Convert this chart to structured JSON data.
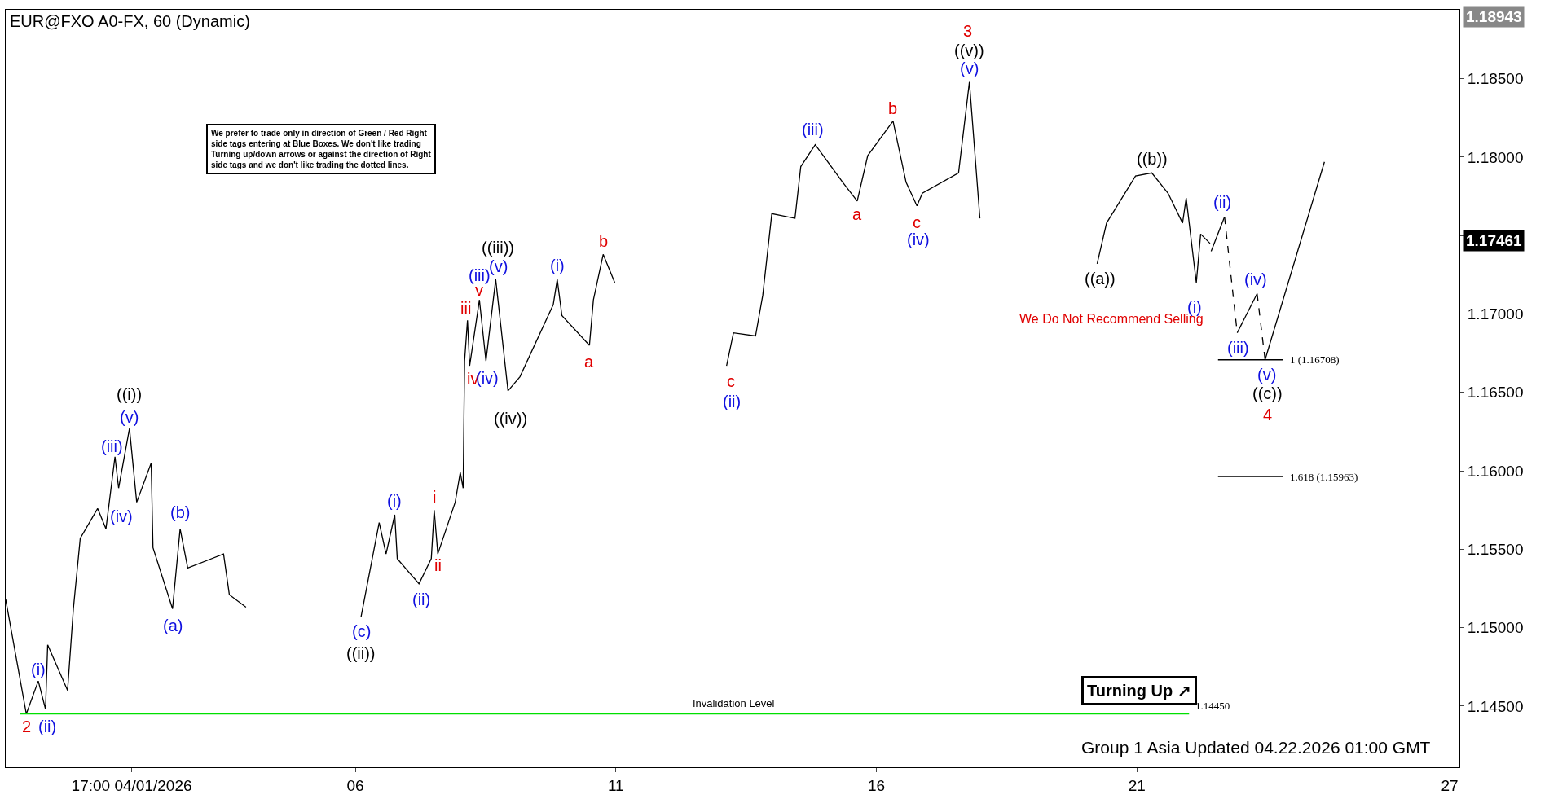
{
  "chart_data": {
    "type": "line",
    "title": "EUR@FXO A0-FX, 60 (Dynamic)",
    "xlim": [
      "2026-03-30T07:00",
      "2026-04-27T04:30"
    ],
    "ylim": [
      1.1411,
      1.1894
    ],
    "xticks": [
      {
        "value": "2026-04-01T17:00",
        "label": "17:00 04/01/2026"
      },
      {
        "value": "2026-04-06",
        "label": "06"
      },
      {
        "value": "2026-04-11",
        "label": "11"
      },
      {
        "value": "2026-04-16",
        "label": "16"
      },
      {
        "value": "2026-04-21",
        "label": "21"
      },
      {
        "value": "2026-04-27",
        "label": "27"
      }
    ],
    "yticks": [
      {
        "value": 1.145,
        "label": "1.14500"
      },
      {
        "value": 1.15,
        "label": "1.15000"
      },
      {
        "value": 1.155,
        "label": "1.15500"
      },
      {
        "value": 1.16,
        "label": "1.16000"
      },
      {
        "value": 1.165,
        "label": "1.16500"
      },
      {
        "value": 1.17,
        "label": "1.17000"
      },
      {
        "value": 1.175,
        "label": null
      },
      {
        "value": 1.18,
        "label": "1.18000"
      },
      {
        "value": 1.185,
        "label": "1.18500"
      }
    ],
    "grid": false,
    "series": [
      {
        "color": "#000000",
        "line_style": "solid",
        "x": [
          "2026-03-30T07:00",
          "2026-03-30T16:30",
          "2026-03-30T22:00",
          "2026-03-31T01:20",
          "2026-03-31T02:20",
          "2026-03-31T11:30",
          "2026-03-31T14:10",
          "2026-03-31T17:20",
          "2026-04-01T01:20",
          "2026-04-01T05:10",
          "2026-04-01T09:20",
          "2026-04-01T11:00",
          "2026-04-01T16:00",
          "2026-04-01T19:20",
          "2026-04-02T02:00",
          "2026-04-02T02:50",
          "2026-04-02T11:50",
          "2026-04-02T15:20",
          "2026-04-02T18:50",
          "2026-04-03T11:20",
          "2026-04-03T14:00",
          "2026-04-03T21:40",
          "2026-04-05T00:00",
          "2026-04-06T02:40",
          "2026-04-06T11:00",
          "2026-04-06T14:10",
          "2026-04-06T18:10",
          "2026-04-06T19:20",
          "2026-04-07T05:20",
          "2026-04-07T11:00",
          "2026-04-07T12:20",
          "2026-04-07T14:00",
          "2026-04-07T22:00",
          "2026-04-08T00:20",
          "2026-04-08T01:40",
          "2026-04-08T02:20",
          "2026-04-08T03:40",
          "2026-04-08T04:40",
          "2026-04-08T09:10",
          "2026-04-08T12:10",
          "2026-04-08T16:40",
          "2026-04-08T22:20",
          "2026-04-09T03:50",
          "2026-04-09T19:10",
          "2026-04-09T21:00",
          "2026-04-09T23:10",
          "2026-04-10T11:50",
          "2026-04-10T13:40",
          "2026-04-10T18:10",
          "2026-04-10T23:30",
          "2026-04-12T00:00",
          "2026-04-13T03:00",
          "2026-04-13T06:10",
          "2026-04-13T16:20",
          "2026-04-13T19:40",
          "2026-04-13T23:50",
          "2026-04-14T10:30",
          "2026-04-14T13:10",
          "2026-04-14T19:50",
          "2026-04-15T08:30",
          "2026-04-15T15:10",
          "2026-04-15T20:00",
          "2026-04-16T07:40",
          "2026-04-16T13:40",
          "2026-04-16T18:40",
          "2026-04-16T21:10",
          "2026-04-17T13:50",
          "2026-04-17T18:50",
          "2026-04-17T21:20",
          "2026-04-17T23:40",
          "2026-04-18T12:00",
          "2026-04-20T05:40",
          "2026-04-20T10:00",
          "2026-04-20T23:20",
          "2026-04-21T06:50",
          "2026-04-21T14:20",
          "2026-04-21T21:00",
          "2026-04-21T22:40",
          "2026-04-22T03:20",
          "2026-04-22T05:20",
          "2026-04-22T09:40"
        ],
        "values": [
          1.1518,
          1.1445,
          1.1466,
          1.1448,
          1.1489,
          1.146,
          1.1512,
          1.1557,
          1.1576,
          1.1563,
          1.1609,
          1.1589,
          1.1627,
          1.158,
          1.1605,
          1.1551,
          1.1512,
          1.1563,
          1.1538,
          1.1547,
          1.1521,
          1.1513,
          null,
          1.1507,
          1.1567,
          1.1547,
          1.1572,
          1.1544,
          1.1528,
          1.1544,
          1.1575,
          1.1547,
          1.158,
          1.1599,
          1.1589,
          1.167,
          1.1696,
          1.1667,
          1.1709,
          1.167,
          1.1722,
          1.1651,
          1.166,
          1.1706,
          1.1722,
          1.1699,
          1.168,
          1.1709,
          1.1738,
          1.172,
          null,
          1.1667,
          1.1688,
          1.1686,
          1.1712,
          1.1764,
          1.1761,
          1.1794,
          1.1808,
          1.1784,
          1.1772,
          1.1801,
          1.1823,
          1.1784,
          1.1769,
          1.1777,
          1.179,
          1.1848,
          1.1803,
          1.1761,
          null,
          1.1732,
          1.1758,
          1.1788,
          1.179,
          1.1777,
          1.1758,
          1.1774,
          1.172,
          1.1751,
          1.1745
        ]
      },
      {
        "color": "#000000",
        "line_style": "solid",
        "x": [
          "2026-04-22T10:10",
          "2026-04-22T16:20"
        ],
        "values": [
          1.174,
          1.1762
        ]
      },
      {
        "color": "#000000",
        "line_style": "dashed",
        "x": [
          "2026-04-22T16:20",
          "2026-04-22T22:10"
        ],
        "values": [
          1.1762,
          1.1688
        ]
      },
      {
        "color": "#000000",
        "line_style": "solid",
        "x": [
          "2026-04-22T22:10",
          "2026-04-23T07:20"
        ],
        "values": [
          1.1688,
          1.1713
        ]
      },
      {
        "color": "#000000",
        "line_style": "dashed",
        "x": [
          "2026-04-23T07:20",
          "2026-04-23T11:00"
        ],
        "values": [
          1.1713,
          1.16708
        ]
      },
      {
        "color": "#000000",
        "line_style": "solid",
        "x": [
          "2026-04-23T11:00",
          "2026-04-24T14:20"
        ],
        "values": [
          1.16708,
          1.1797
        ]
      },
      {
        "color": "#00e000",
        "line_style": "solid",
        "x": [
          "2026-03-30T13:40",
          "2026-04-22T00:00"
        ],
        "values": [
          1.1445,
          1.1445
        ]
      },
      {
        "color": "#000000",
        "line_style": "solid",
        "x": [
          "2026-04-22T13:20",
          "2026-04-23T19:20"
        ],
        "values": [
          1.16708,
          1.16708
        ]
      },
      {
        "color": "#000000",
        "line_style": "solid",
        "x": [
          "2026-04-22T13:20",
          "2026-04-23T19:20"
        ],
        "values": [
          1.15963,
          1.15963
        ]
      }
    ],
    "annotations": [
      "We prefer to trade only in direction of Green / Red Right side tags entering at Blue Boxes. We don't like trading Turning up/down arrows or against the direction of Right side tags and we don't like trading the dotted lines.",
      "Turning Up ↗",
      "Group 1 Asia Updated 04.22.2026 01:00 GMT",
      "1.18943",
      "1.17461",
      "Invalidation Level",
      {
        "text": "1.14450",
        "x": "2026-04-22T00:00",
        "y": 1.1445
      },
      {
        "text": "1 (1.16708)",
        "x": "2026-04-23T19:20",
        "y": 1.16708
      },
      {
        "text": "1.618 (1.15963)",
        "x": "2026-04-23T19:20",
        "y": 1.15963
      },
      "We Do Not Recommend Selling",
      {
        "text": "2",
        "x": "2026-03-30T16:30",
        "y": 1.1445
      },
      {
        "text": "(i)",
        "x": "2026-03-30T22:00",
        "y": 1.1466
      },
      {
        "text": "(ii)",
        "x": "2026-03-31T01:20",
        "y": 1.1448
      },
      {
        "text": "((i))",
        "x": "2026-04-01T16:00",
        "y": 1.1627
      },
      {
        "text": "(v)",
        "x": "2026-04-01T16:00",
        "y": 1.1627
      },
      {
        "text": "(iii)",
        "x": "2026-04-01T09:20",
        "y": 1.1609
      },
      {
        "text": "(iv)",
        "x": "2026-04-01T11:00",
        "y": 1.1589
      },
      {
        "text": "(b)",
        "x": "2026-04-02T15:20",
        "y": 1.1563
      },
      {
        "text": "(a)",
        "x": "2026-04-02T11:50",
        "y": 1.1512
      },
      {
        "text": "(c)",
        "x": "2026-04-06T02:40",
        "y": 1.1507
      },
      {
        "text": "((ii))",
        "x": "2026-04-06T02:40",
        "y": 1.1507
      },
      {
        "text": "(i)",
        "x": "2026-04-06T18:10",
        "y": 1.1572
      },
      {
        "text": "(ii)",
        "x": "2026-04-07T05:20",
        "y": 1.1528
      },
      {
        "text": "i",
        "x": "2026-04-07T12:20",
        "y": 1.1575
      },
      {
        "text": "ii",
        "x": "2026-04-07T14:00",
        "y": 1.1547
      },
      {
        "text": "iii",
        "x": "2026-04-08T03:40",
        "y": 1.1696
      },
      {
        "text": "iv",
        "x": "2026-04-08T04:40",
        "y": 1.1667
      },
      {
        "text": "(iv)",
        "x": "2026-04-08T12:10",
        "y": 1.167
      },
      {
        "text": "v",
        "x": "2026-04-08T09:10",
        "y": 1.1709
      },
      {
        "text": "(iii)",
        "x": "2026-04-08T09:10",
        "y": 1.1709
      },
      {
        "text": "(v)",
        "x": "2026-04-08T16:40",
        "y": 1.1722
      },
      {
        "text": "((iii))",
        "x": "2026-04-08T16:40",
        "y": 1.1722
      },
      {
        "text": "((iv))",
        "x": "2026-04-08T22:20",
        "y": 1.1651
      },
      {
        "text": "(i)",
        "x": "2026-04-09T21:00",
        "y": 1.1722
      },
      {
        "text": "a",
        "x": "2026-04-10T11:50",
        "y": 1.168
      },
      {
        "text": "b",
        "x": "2026-04-10T18:10",
        "y": 1.1738
      },
      {
        "text": "c",
        "x": "2026-04-13T03:00",
        "y": 1.1667
      },
      {
        "text": "(ii)",
        "x": "2026-04-13T03:00",
        "y": 1.1667
      },
      {
        "text": "(iii)",
        "x": "2026-04-14T19:50",
        "y": 1.1808
      },
      {
        "text": "a",
        "x": "2026-04-15T15:10",
        "y": 1.1772
      },
      {
        "text": "b",
        "x": "2026-04-16T07:40",
        "y": 1.1823
      },
      {
        "text": "c",
        "x": "2026-04-16T18:40",
        "y": 1.1769
      },
      {
        "text": "(iv)",
        "x": "2026-04-16T18:40",
        "y": 1.1769
      },
      {
        "text": "3",
        "x": "2026-04-17T18:50",
        "y": 1.1848
      },
      {
        "text": "((v))",
        "x": "2026-04-17T18:50",
        "y": 1.1848
      },
      {
        "text": "(v)",
        "x": "2026-04-17T18:50",
        "y": 1.1848
      },
      {
        "text": "((a))",
        "x": "2026-04-20T05:40",
        "y": 1.1732
      },
      {
        "text": "((b))",
        "x": "2026-04-21T06:50",
        "y": 1.179
      },
      {
        "text": "(i)",
        "x": "2026-04-22T03:20",
        "y": 1.172
      },
      {
        "text": "(ii)",
        "x": "2026-04-22T16:20",
        "y": 1.1762
      },
      {
        "text": "(iii)",
        "x": "2026-04-22T22:10",
        "y": 1.1688
      },
      {
        "text": "(iv)",
        "x": "2026-04-23T07:20",
        "y": 1.1713
      },
      {
        "text": "(v)",
        "x": "2026-04-23T11:00",
        "y": 1.16708
      },
      {
        "text": "((c))",
        "x": "2026-04-23T11:00",
        "y": 1.16708
      },
      {
        "text": "4",
        "x": "2026-04-23T11:00",
        "y": 1.16708
      }
    ]
  }
}
